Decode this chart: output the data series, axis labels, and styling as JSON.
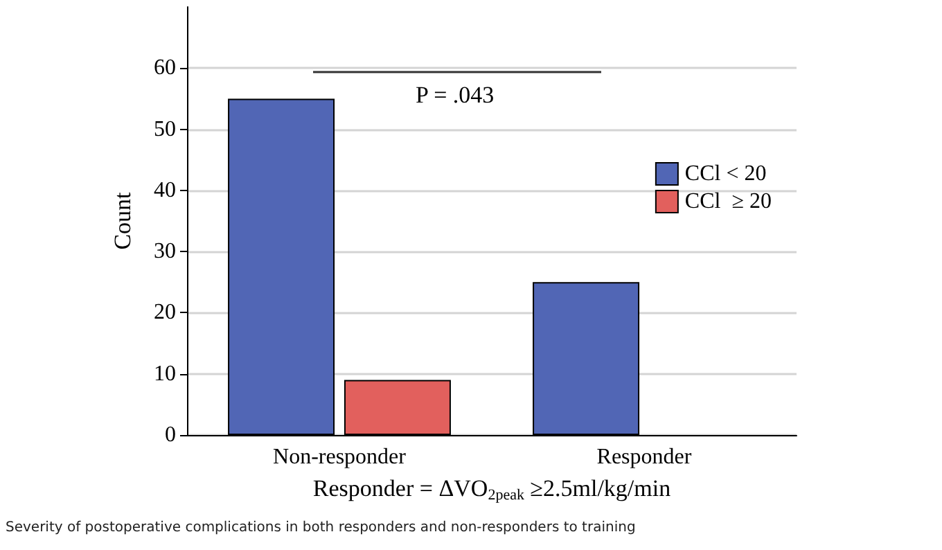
{
  "chart_data": {
    "type": "bar",
    "xlabel": "Responder = ΔVO$_{2peak}$ ≥2.5ml/kg/min",
    "ylabel": "Count",
    "categories": [
      "Non-responder",
      "Responder"
    ],
    "series": [
      {
        "name": "CCl < 20",
        "color": "#5166b5",
        "values": [
          55,
          25
        ]
      },
      {
        "name": "CCl  ≥ 20",
        "color": "#e2605d",
        "values": [
          9,
          0
        ]
      }
    ],
    "ylim": [
      0,
      70
    ],
    "yticks": [
      0,
      10,
      20,
      30,
      40,
      50,
      60
    ],
    "grid": "y",
    "legend": "right",
    "annotations": [
      "P = .043",
      "Severity of postoperative complications in both responders and non-responders to training"
    ]
  }
}
